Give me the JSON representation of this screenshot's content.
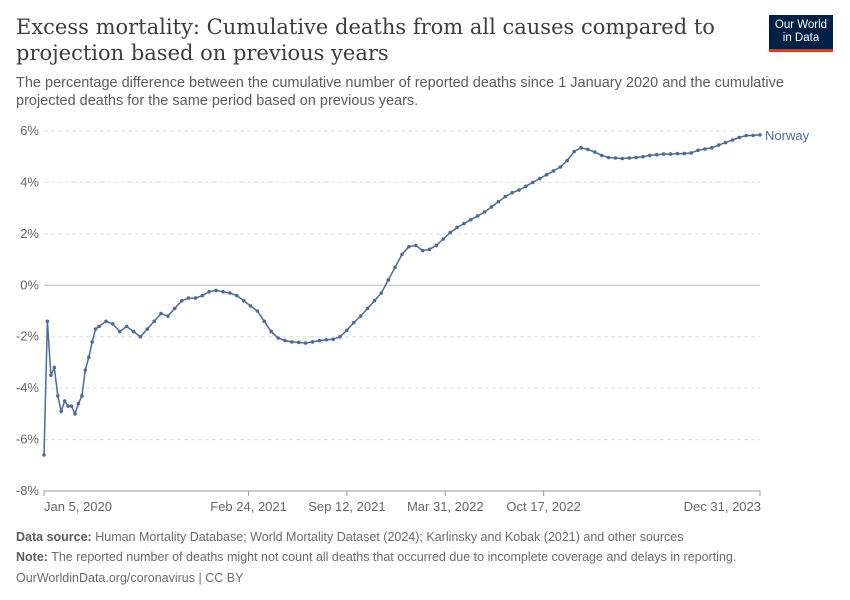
{
  "header": {
    "title": "Excess mortality: Cumulative deaths from all causes compared to projection based on previous years",
    "subtitle": "The percentage difference between the cumulative number of reported deaths since 1 January 2020 and the cumulative projected deaths for the same period based on previous years.",
    "logo_line1": "Our World",
    "logo_line2": "in Data"
  },
  "footer": {
    "source_label": "Data source:",
    "source_text": "Human Mortality Database; World Mortality Dataset (2024); Karlinsky and Kobak (2021) and other sources",
    "note_label": "Note:",
    "note_text": "The reported number of deaths might not count all deaths that occurred due to incomplete coverage and delays in reporting.",
    "credit": "OurWorldinData.org/coronavirus | CC BY"
  },
  "colors": {
    "series": "#4c6a9c",
    "grid": "#dddddd",
    "axis": "#666666",
    "logo_bg": "#002147",
    "logo_bar": "#e63912"
  },
  "chart_data": {
    "type": "line",
    "title": "Excess mortality: Cumulative deaths from all causes compared to projection based on previous years",
    "ylabel": "",
    "xlabel": "",
    "y_unit": "%",
    "ylim": [
      -8,
      6
    ],
    "yticks": [
      -8,
      -6,
      -4,
      -2,
      0,
      2,
      4,
      6
    ],
    "xlim": [
      "2020-01-05",
      "2023-12-31"
    ],
    "xticks": [
      "Jan 5, 2020",
      "Feb 24, 2021",
      "Sep 12, 2021",
      "Mar 31, 2022",
      "Oct 17, 2022",
      "Dec 31, 2023"
    ],
    "xtick_dates": [
      "2020-01-05",
      "2021-02-24",
      "2021-09-12",
      "2022-03-31",
      "2022-10-17",
      "2023-12-31"
    ],
    "grid": true,
    "series": [
      {
        "name": "Norway",
        "points": [
          [
            "2020-01-05",
            -6.6
          ],
          [
            "2020-01-12",
            -1.4
          ],
          [
            "2020-01-19",
            -3.5
          ],
          [
            "2020-01-26",
            -3.2
          ],
          [
            "2020-02-02",
            -4.3
          ],
          [
            "2020-02-09",
            -4.9
          ],
          [
            "2020-02-16",
            -4.5
          ],
          [
            "2020-02-23",
            -4.7
          ],
          [
            "2020-03-01",
            -4.7
          ],
          [
            "2020-03-08",
            -5.0
          ],
          [
            "2020-03-15",
            -4.6
          ],
          [
            "2020-03-22",
            -4.3
          ],
          [
            "2020-03-29",
            -3.3
          ],
          [
            "2020-04-05",
            -2.8
          ],
          [
            "2020-04-12",
            -2.2
          ],
          [
            "2020-04-19",
            -1.7
          ],
          [
            "2020-04-26",
            -1.6
          ],
          [
            "2020-05-10",
            -1.4
          ],
          [
            "2020-05-24",
            -1.5
          ],
          [
            "2020-06-07",
            -1.8
          ],
          [
            "2020-06-21",
            -1.6
          ],
          [
            "2020-07-05",
            -1.8
          ],
          [
            "2020-07-19",
            -2.0
          ],
          [
            "2020-08-02",
            -1.7
          ],
          [
            "2020-08-16",
            -1.4
          ],
          [
            "2020-08-30",
            -1.1
          ],
          [
            "2020-09-13",
            -1.2
          ],
          [
            "2020-09-27",
            -0.9
          ],
          [
            "2020-10-11",
            -0.6
          ],
          [
            "2020-10-25",
            -0.5
          ],
          [
            "2020-11-08",
            -0.5
          ],
          [
            "2020-11-22",
            -0.4
          ],
          [
            "2020-12-06",
            -0.25
          ],
          [
            "2020-12-20",
            -0.2
          ],
          [
            "2021-01-03",
            -0.25
          ],
          [
            "2021-01-17",
            -0.3
          ],
          [
            "2021-01-31",
            -0.4
          ],
          [
            "2021-02-14",
            -0.6
          ],
          [
            "2021-02-28",
            -0.8
          ],
          [
            "2021-03-14",
            -1.0
          ],
          [
            "2021-03-28",
            -1.4
          ],
          [
            "2021-04-11",
            -1.8
          ],
          [
            "2021-04-25",
            -2.05
          ],
          [
            "2021-05-09",
            -2.15
          ],
          [
            "2021-05-23",
            -2.2
          ],
          [
            "2021-06-06",
            -2.22
          ],
          [
            "2021-06-20",
            -2.25
          ],
          [
            "2021-07-04",
            -2.2
          ],
          [
            "2021-07-18",
            -2.15
          ],
          [
            "2021-08-01",
            -2.12
          ],
          [
            "2021-08-15",
            -2.1
          ],
          [
            "2021-08-29",
            -2.0
          ],
          [
            "2021-09-12",
            -1.75
          ],
          [
            "2021-09-26",
            -1.45
          ],
          [
            "2021-10-10",
            -1.2
          ],
          [
            "2021-10-24",
            -0.9
          ],
          [
            "2021-11-07",
            -0.6
          ],
          [
            "2021-11-21",
            -0.3
          ],
          [
            "2021-12-05",
            0.2
          ],
          [
            "2021-12-19",
            0.7
          ],
          [
            "2022-01-02",
            1.2
          ],
          [
            "2022-01-16",
            1.5
          ],
          [
            "2022-01-30",
            1.55
          ],
          [
            "2022-02-13",
            1.35
          ],
          [
            "2022-02-27",
            1.4
          ],
          [
            "2022-03-13",
            1.55
          ],
          [
            "2022-03-27",
            1.8
          ],
          [
            "2022-04-10",
            2.05
          ],
          [
            "2022-04-24",
            2.25
          ],
          [
            "2022-05-08",
            2.4
          ],
          [
            "2022-05-22",
            2.55
          ],
          [
            "2022-06-05",
            2.7
          ],
          [
            "2022-06-19",
            2.85
          ],
          [
            "2022-07-03",
            3.05
          ],
          [
            "2022-07-17",
            3.25
          ],
          [
            "2022-07-31",
            3.45
          ],
          [
            "2022-08-14",
            3.6
          ],
          [
            "2022-08-28",
            3.7
          ],
          [
            "2022-09-11",
            3.85
          ],
          [
            "2022-09-25",
            4.0
          ],
          [
            "2022-10-09",
            4.15
          ],
          [
            "2022-10-23",
            4.3
          ],
          [
            "2022-11-06",
            4.45
          ],
          [
            "2022-11-20",
            4.6
          ],
          [
            "2022-12-04",
            4.85
          ],
          [
            "2022-12-18",
            5.2
          ],
          [
            "2023-01-01",
            5.35
          ],
          [
            "2023-01-15",
            5.28
          ],
          [
            "2023-01-29",
            5.18
          ],
          [
            "2023-02-12",
            5.05
          ],
          [
            "2023-02-26",
            4.97
          ],
          [
            "2023-03-12",
            4.95
          ],
          [
            "2023-03-26",
            4.93
          ],
          [
            "2023-04-09",
            4.95
          ],
          [
            "2023-04-23",
            4.97
          ],
          [
            "2023-05-07",
            5.0
          ],
          [
            "2023-05-21",
            5.05
          ],
          [
            "2023-06-04",
            5.08
          ],
          [
            "2023-06-18",
            5.1
          ],
          [
            "2023-07-02",
            5.1
          ],
          [
            "2023-07-16",
            5.12
          ],
          [
            "2023-07-30",
            5.12
          ],
          [
            "2023-08-13",
            5.15
          ],
          [
            "2023-08-27",
            5.25
          ],
          [
            "2023-09-10",
            5.3
          ],
          [
            "2023-09-24",
            5.35
          ],
          [
            "2023-10-08",
            5.45
          ],
          [
            "2023-10-22",
            5.55
          ],
          [
            "2023-11-05",
            5.65
          ],
          [
            "2023-11-19",
            5.75
          ],
          [
            "2023-12-03",
            5.82
          ],
          [
            "2023-12-17",
            5.83
          ],
          [
            "2023-12-31",
            5.85
          ]
        ]
      }
    ]
  }
}
